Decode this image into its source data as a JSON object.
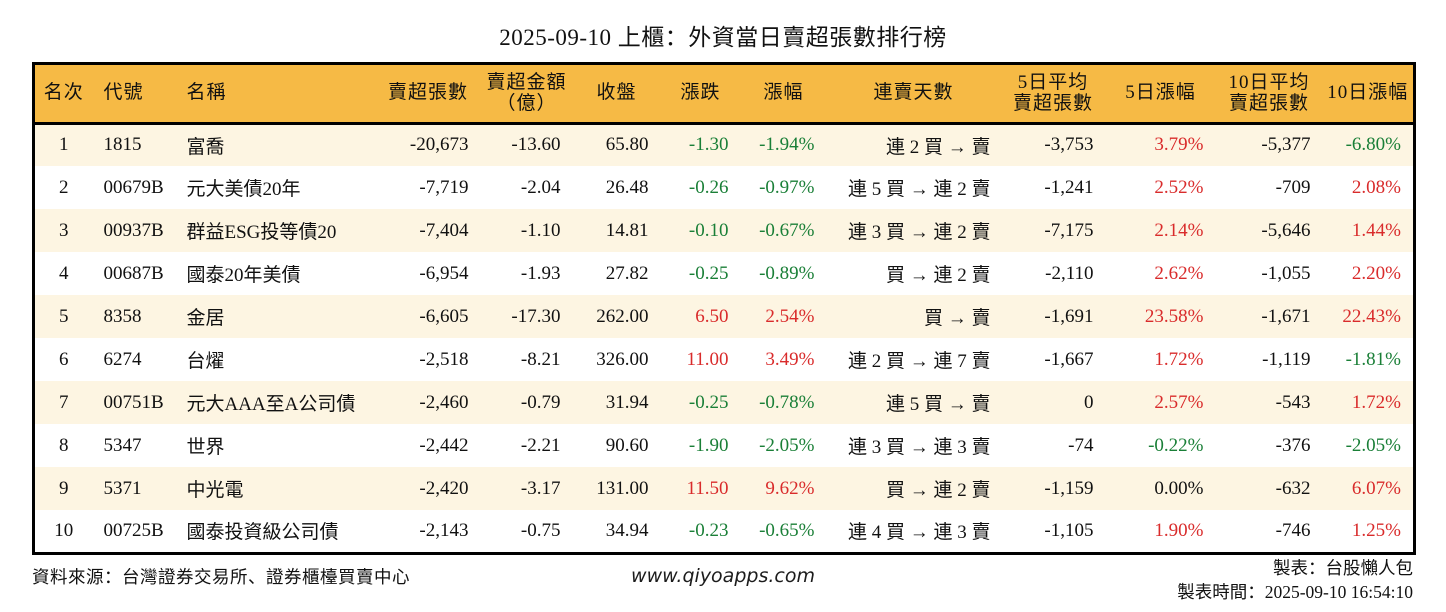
{
  "title": "2025-09-10 上櫃：外資當日賣超張數排行榜",
  "colors": {
    "up": "#d92b2b",
    "down": "#1a7f37",
    "flat": "#111111",
    "header_bg": "#f6ba45",
    "row_alt_bg": "#fdf5e2",
    "border": "#000000"
  },
  "table": {
    "columns": [
      {
        "key": "rank",
        "label": "名次",
        "align": "center",
        "header_align": "center"
      },
      {
        "key": "code",
        "label": "代號",
        "align": "left",
        "header_align": "left"
      },
      {
        "key": "name",
        "label": "名稱",
        "align": "left",
        "header_align": "left"
      },
      {
        "key": "sell_volume",
        "label": "賣超張數",
        "align": "right",
        "header_align": "center"
      },
      {
        "key": "sell_amount",
        "label": "賣超金額\n（億）",
        "align": "right",
        "header_align": "center"
      },
      {
        "key": "close",
        "label": "收盤",
        "align": "right",
        "header_align": "center"
      },
      {
        "key": "change",
        "label": "漲跌",
        "align": "right",
        "header_align": "center"
      },
      {
        "key": "change_pct",
        "label": "漲幅",
        "align": "right",
        "header_align": "center"
      },
      {
        "key": "streak",
        "label": "連賣天數",
        "align": "right",
        "header_align": "center"
      },
      {
        "key": "avg5",
        "label": "5日平均\n賣超張數",
        "align": "right",
        "header_align": "center"
      },
      {
        "key": "pct5",
        "label": "5日漲幅",
        "align": "right",
        "header_align": "center"
      },
      {
        "key": "avg10",
        "label": "10日平均\n賣超張數",
        "align": "right",
        "header_align": "center"
      },
      {
        "key": "pct10",
        "label": "10日漲幅",
        "align": "right",
        "header_align": "center"
      }
    ],
    "rows": [
      {
        "rank": "1",
        "code": "1815",
        "name": "富喬",
        "sell_volume": "-20,673",
        "sell_amount": "-13.60",
        "close": "65.80",
        "change": "-1.30",
        "change_tone": "down",
        "change_pct": "-1.94%",
        "change_pct_tone": "down",
        "streak": "連 2 買 → 賣",
        "avg5": "-3,753",
        "pct5": "3.79%",
        "pct5_tone": "up",
        "avg10": "-5,377",
        "pct10": "-6.80%",
        "pct10_tone": "down"
      },
      {
        "rank": "2",
        "code": "00679B",
        "name": "元大美債20年",
        "sell_volume": "-7,719",
        "sell_amount": "-2.04",
        "close": "26.48",
        "change": "-0.26",
        "change_tone": "down",
        "change_pct": "-0.97%",
        "change_pct_tone": "down",
        "streak": "連 5 買 → 連 2 賣",
        "avg5": "-1,241",
        "pct5": "2.52%",
        "pct5_tone": "up",
        "avg10": "-709",
        "pct10": "2.08%",
        "pct10_tone": "up"
      },
      {
        "rank": "3",
        "code": "00937B",
        "name": "群益ESG投等債20",
        "sell_volume": "-7,404",
        "sell_amount": "-1.10",
        "close": "14.81",
        "change": "-0.10",
        "change_tone": "down",
        "change_pct": "-0.67%",
        "change_pct_tone": "down",
        "streak": "連 3 買 → 連 2 賣",
        "avg5": "-7,175",
        "pct5": "2.14%",
        "pct5_tone": "up",
        "avg10": "-5,646",
        "pct10": "1.44%",
        "pct10_tone": "up"
      },
      {
        "rank": "4",
        "code": "00687B",
        "name": "國泰20年美債",
        "sell_volume": "-6,954",
        "sell_amount": "-1.93",
        "close": "27.82",
        "change": "-0.25",
        "change_tone": "down",
        "change_pct": "-0.89%",
        "change_pct_tone": "down",
        "streak": "買 → 連 2 賣",
        "avg5": "-2,110",
        "pct5": "2.62%",
        "pct5_tone": "up",
        "avg10": "-1,055",
        "pct10": "2.20%",
        "pct10_tone": "up"
      },
      {
        "rank": "5",
        "code": "8358",
        "name": "金居",
        "sell_volume": "-6,605",
        "sell_amount": "-17.30",
        "close": "262.00",
        "change": "6.50",
        "change_tone": "up",
        "change_pct": "2.54%",
        "change_pct_tone": "up",
        "streak": "買 → 賣",
        "avg5": "-1,691",
        "pct5": "23.58%",
        "pct5_tone": "up",
        "avg10": "-1,671",
        "pct10": "22.43%",
        "pct10_tone": "up"
      },
      {
        "rank": "6",
        "code": "6274",
        "name": "台燿",
        "sell_volume": "-2,518",
        "sell_amount": "-8.21",
        "close": "326.00",
        "change": "11.00",
        "change_tone": "up",
        "change_pct": "3.49%",
        "change_pct_tone": "up",
        "streak": "連 2 買 → 連 7 賣",
        "avg5": "-1,667",
        "pct5": "1.72%",
        "pct5_tone": "up",
        "avg10": "-1,119",
        "pct10": "-1.81%",
        "pct10_tone": "down"
      },
      {
        "rank": "7",
        "code": "00751B",
        "name": "元大AAA至A公司債",
        "sell_volume": "-2,460",
        "sell_amount": "-0.79",
        "close": "31.94",
        "change": "-0.25",
        "change_tone": "down",
        "change_pct": "-0.78%",
        "change_pct_tone": "down",
        "streak": "連 5 買 → 賣",
        "avg5": "0",
        "pct5": "2.57%",
        "pct5_tone": "up",
        "avg10": "-543",
        "pct10": "1.72%",
        "pct10_tone": "up"
      },
      {
        "rank": "8",
        "code": "5347",
        "name": "世界",
        "sell_volume": "-2,442",
        "sell_amount": "-2.21",
        "close": "90.60",
        "change": "-1.90",
        "change_tone": "down",
        "change_pct": "-2.05%",
        "change_pct_tone": "down",
        "streak": "連 3 買 → 連 3 賣",
        "avg5": "-74",
        "pct5": "-0.22%",
        "pct5_tone": "down",
        "avg10": "-376",
        "pct10": "-2.05%",
        "pct10_tone": "down"
      },
      {
        "rank": "9",
        "code": "5371",
        "name": "中光電",
        "sell_volume": "-2,420",
        "sell_amount": "-3.17",
        "close": "131.00",
        "change": "11.50",
        "change_tone": "up",
        "change_pct": "9.62%",
        "change_pct_tone": "up",
        "streak": "買 → 連 2 賣",
        "avg5": "-1,159",
        "pct5": "0.00%",
        "pct5_tone": "flat",
        "avg10": "-632",
        "pct10": "6.07%",
        "pct10_tone": "up"
      },
      {
        "rank": "10",
        "code": "00725B",
        "name": "國泰投資級公司債",
        "sell_volume": "-2,143",
        "sell_amount": "-0.75",
        "close": "34.94",
        "change": "-0.23",
        "change_tone": "down",
        "change_pct": "-0.65%",
        "change_pct_tone": "down",
        "streak": "連 4 買 → 連 3 賣",
        "avg5": "-1,105",
        "pct5": "1.90%",
        "pct5_tone": "up",
        "avg10": "-746",
        "pct10": "1.25%",
        "pct10_tone": "up"
      }
    ]
  },
  "footer": {
    "source": "資料來源：台灣證券交易所、證券櫃檯買賣中心",
    "website": "www.qiyoapps.com",
    "maker": "製表：台股懶人包",
    "made_time": "製表時間：2025-09-10 16:54:10"
  }
}
